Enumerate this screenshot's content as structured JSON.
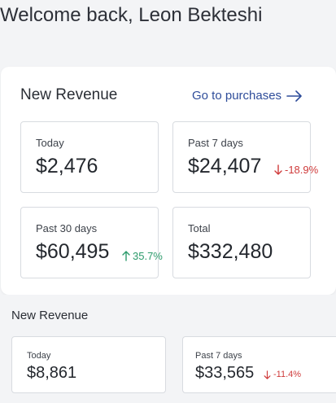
{
  "header": {
    "welcome": "Welcome back, Leon Bekteshi"
  },
  "revenue_panel": {
    "title": "New Revenue",
    "link_label": "Go to purchases",
    "link_icon": "arrow-right-icon",
    "cards": [
      {
        "label": "Today",
        "value": "$2,476"
      },
      {
        "label": "Past 7 days",
        "value": "$24,407",
        "change": "-18.9%",
        "direction": "down"
      },
      {
        "label": "Past 30 days",
        "value": "$60,495",
        "change": "35.7%",
        "direction": "up"
      },
      {
        "label": "Total",
        "value": "$332,480"
      }
    ]
  },
  "revenue_panel_small": {
    "title": "New Revenue",
    "cards": [
      {
        "label": "Today",
        "value": "$8,861"
      },
      {
        "label": "Past 7 days",
        "value": "$33,565",
        "change": "-11.4%",
        "direction": "down"
      }
    ]
  },
  "colors": {
    "link": "#2f4d9a",
    "negative": "#cf3b3b",
    "positive": "#2c9a6b"
  }
}
